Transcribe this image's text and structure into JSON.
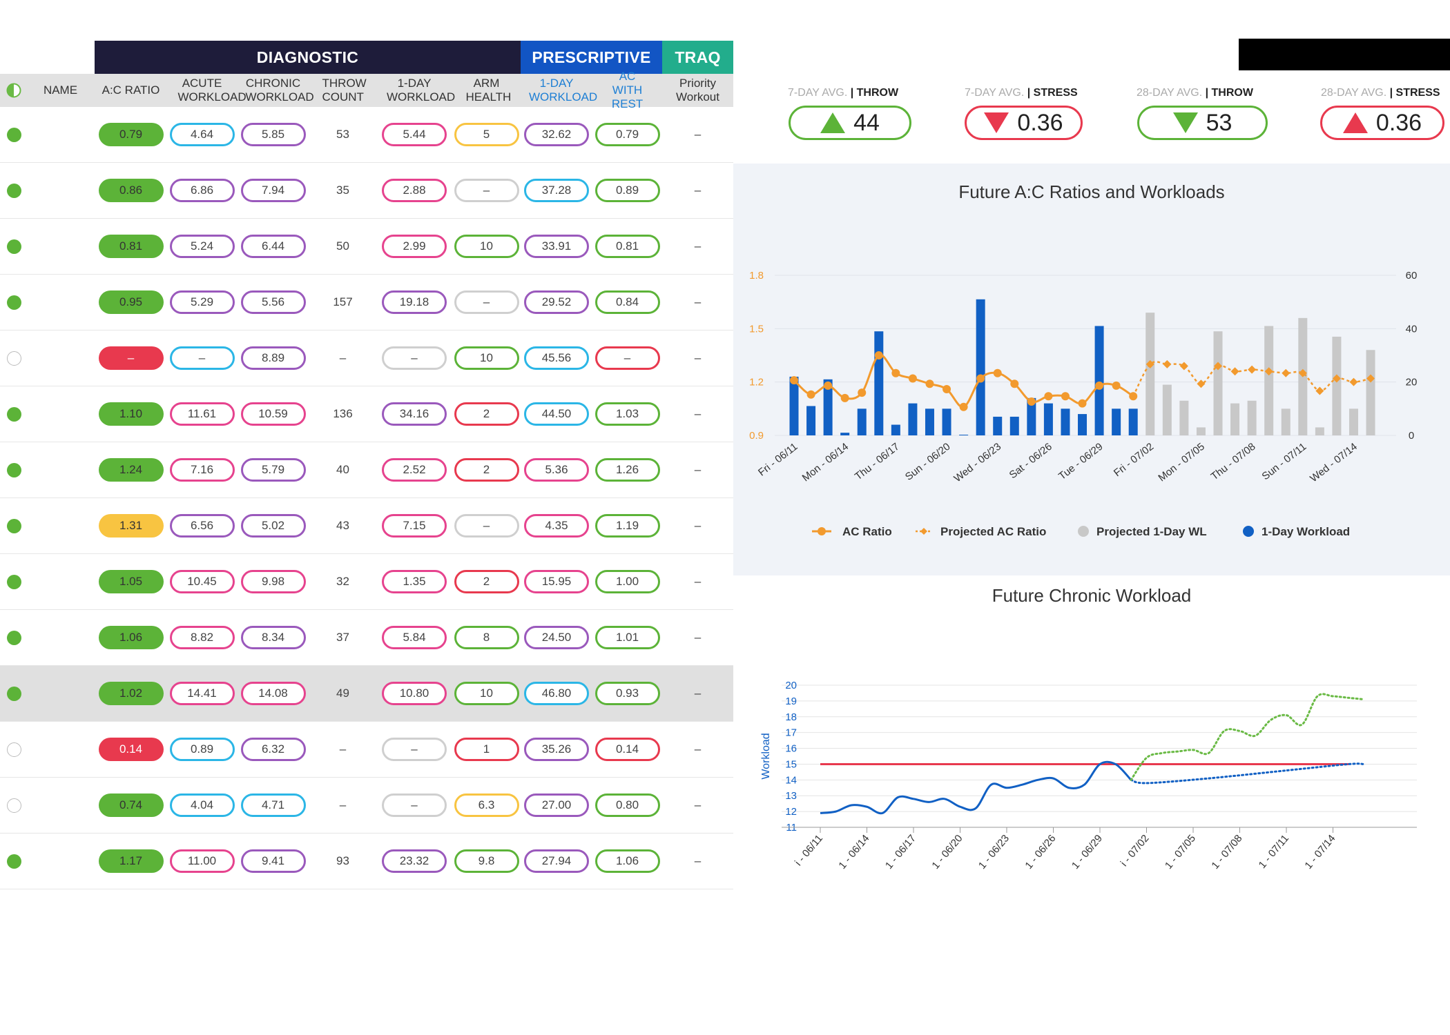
{
  "header": {
    "groups": [
      {
        "label": "DIAGNOSTIC",
        "color": "#1e1c3a"
      },
      {
        "label": "PRESCRIPTIVE",
        "color": "#1255c4"
      },
      {
        "label": "TRAQ",
        "color": "#22ad8c"
      }
    ],
    "columns": [
      {
        "key": "status",
        "label": "",
        "icon": "half-circle-icon"
      },
      {
        "key": "name",
        "label": "NAME"
      },
      {
        "key": "ac",
        "label": "A:C RATIO"
      },
      {
        "key": "acute",
        "label": "ACUTE WORKLOAD"
      },
      {
        "key": "chronic",
        "label": "CHRONIC WORKLOAD"
      },
      {
        "key": "throw",
        "label": "THROW COUNT"
      },
      {
        "key": "day1",
        "label": "1-DAY WORKLOAD"
      },
      {
        "key": "arm",
        "label": "ARM HEALTH"
      },
      {
        "key": "pday1",
        "label": "1-DAY WORKLOAD"
      },
      {
        "key": "acrest",
        "label": "AC WITH REST"
      },
      {
        "key": "priority",
        "label": "Priority Workout"
      }
    ]
  },
  "colors": {
    "green": "#5cb338",
    "red": "#e8394e",
    "yellow": "#f8c441",
    "purple": "#9a59bc",
    "cyan": "#2bb6e6",
    "pink": "#e6438e",
    "gray": "#cfcfcf",
    "orange": "#f29a2e"
  },
  "rows": [
    {
      "active": true,
      "ac": {
        "v": "0.79",
        "c": "green"
      },
      "acute": {
        "v": "4.64",
        "c": "cyan"
      },
      "chronic": {
        "v": "5.85",
        "c": "purple"
      },
      "throw": "53",
      "day1": {
        "v": "5.44",
        "c": "pink"
      },
      "arm": {
        "v": "5",
        "c": "yellow"
      },
      "pday1": {
        "v": "32.62",
        "c": "purple"
      },
      "acrest": {
        "v": "0.79",
        "c": "green"
      },
      "priority": "–"
    },
    {
      "active": true,
      "ac": {
        "v": "0.86",
        "c": "green"
      },
      "acute": {
        "v": "6.86",
        "c": "purple"
      },
      "chronic": {
        "v": "7.94",
        "c": "purple"
      },
      "throw": "35",
      "day1": {
        "v": "2.88",
        "c": "pink"
      },
      "arm": {
        "v": "–",
        "c": "gray"
      },
      "pday1": {
        "v": "37.28",
        "c": "cyan"
      },
      "acrest": {
        "v": "0.89",
        "c": "green"
      },
      "priority": "–"
    },
    {
      "active": true,
      "ac": {
        "v": "0.81",
        "c": "green"
      },
      "acute": {
        "v": "5.24",
        "c": "purple"
      },
      "chronic": {
        "v": "6.44",
        "c": "purple"
      },
      "throw": "50",
      "day1": {
        "v": "2.99",
        "c": "pink"
      },
      "arm": {
        "v": "10",
        "c": "green"
      },
      "pday1": {
        "v": "33.91",
        "c": "purple"
      },
      "acrest": {
        "v": "0.81",
        "c": "green"
      },
      "priority": "–"
    },
    {
      "active": true,
      "ac": {
        "v": "0.95",
        "c": "green"
      },
      "acute": {
        "v": "5.29",
        "c": "purple"
      },
      "chronic": {
        "v": "5.56",
        "c": "purple"
      },
      "throw": "157",
      "day1": {
        "v": "19.18",
        "c": "purple"
      },
      "arm": {
        "v": "–",
        "c": "gray"
      },
      "pday1": {
        "v": "29.52",
        "c": "purple"
      },
      "acrest": {
        "v": "0.84",
        "c": "green"
      },
      "priority": "–"
    },
    {
      "active": false,
      "ac": {
        "v": "–",
        "c": "red"
      },
      "acute": {
        "v": "–",
        "c": "cyan"
      },
      "chronic": {
        "v": "8.89",
        "c": "purple"
      },
      "throw": "–",
      "day1": {
        "v": "–",
        "c": "gray"
      },
      "arm": {
        "v": "10",
        "c": "green"
      },
      "pday1": {
        "v": "45.56",
        "c": "cyan"
      },
      "acrest": {
        "v": "–",
        "c": "red"
      },
      "priority": "–"
    },
    {
      "active": true,
      "ac": {
        "v": "1.10",
        "c": "green"
      },
      "acute": {
        "v": "11.61",
        "c": "pink"
      },
      "chronic": {
        "v": "10.59",
        "c": "pink"
      },
      "throw": "136",
      "day1": {
        "v": "34.16",
        "c": "purple"
      },
      "arm": {
        "v": "2",
        "c": "red"
      },
      "pday1": {
        "v": "44.50",
        "c": "cyan"
      },
      "acrest": {
        "v": "1.03",
        "c": "green"
      },
      "priority": "–"
    },
    {
      "active": true,
      "ac": {
        "v": "1.24",
        "c": "green"
      },
      "acute": {
        "v": "7.16",
        "c": "pink"
      },
      "chronic": {
        "v": "5.79",
        "c": "purple"
      },
      "throw": "40",
      "day1": {
        "v": "2.52",
        "c": "pink"
      },
      "arm": {
        "v": "2",
        "c": "red"
      },
      "pday1": {
        "v": "5.36",
        "c": "pink"
      },
      "acrest": {
        "v": "1.26",
        "c": "green"
      },
      "priority": "–"
    },
    {
      "active": true,
      "ac": {
        "v": "1.31",
        "c": "yellow"
      },
      "acute": {
        "v": "6.56",
        "c": "purple"
      },
      "chronic": {
        "v": "5.02",
        "c": "purple"
      },
      "throw": "43",
      "day1": {
        "v": "7.15",
        "c": "pink"
      },
      "arm": {
        "v": "–",
        "c": "gray"
      },
      "pday1": {
        "v": "4.35",
        "c": "pink"
      },
      "acrest": {
        "v": "1.19",
        "c": "green"
      },
      "priority": "–"
    },
    {
      "active": true,
      "ac": {
        "v": "1.05",
        "c": "green"
      },
      "acute": {
        "v": "10.45",
        "c": "pink"
      },
      "chronic": {
        "v": "9.98",
        "c": "pink"
      },
      "throw": "32",
      "day1": {
        "v": "1.35",
        "c": "pink"
      },
      "arm": {
        "v": "2",
        "c": "red"
      },
      "pday1": {
        "v": "15.95",
        "c": "pink"
      },
      "acrest": {
        "v": "1.00",
        "c": "green"
      },
      "priority": "–"
    },
    {
      "active": true,
      "ac": {
        "v": "1.06",
        "c": "green"
      },
      "acute": {
        "v": "8.82",
        "c": "pink"
      },
      "chronic": {
        "v": "8.34",
        "c": "purple"
      },
      "throw": "37",
      "day1": {
        "v": "5.84",
        "c": "pink"
      },
      "arm": {
        "v": "8",
        "c": "green"
      },
      "pday1": {
        "v": "24.50",
        "c": "purple"
      },
      "acrest": {
        "v": "1.01",
        "c": "green"
      },
      "priority": "–"
    },
    {
      "active": true,
      "highlight": true,
      "ac": {
        "v": "1.02",
        "c": "green"
      },
      "acute": {
        "v": "14.41",
        "c": "pink"
      },
      "chronic": {
        "v": "14.08",
        "c": "pink"
      },
      "throw": "49",
      "day1": {
        "v": "10.80",
        "c": "pink"
      },
      "arm": {
        "v": "10",
        "c": "green"
      },
      "pday1": {
        "v": "46.80",
        "c": "cyan"
      },
      "acrest": {
        "v": "0.93",
        "c": "green"
      },
      "priority": "–"
    },
    {
      "active": false,
      "ac": {
        "v": "0.14",
        "c": "red"
      },
      "acute": {
        "v": "0.89",
        "c": "cyan"
      },
      "chronic": {
        "v": "6.32",
        "c": "purple"
      },
      "throw": "–",
      "day1": {
        "v": "–",
        "c": "gray"
      },
      "arm": {
        "v": "1",
        "c": "red"
      },
      "pday1": {
        "v": "35.26",
        "c": "purple"
      },
      "acrest": {
        "v": "0.14",
        "c": "red"
      },
      "priority": "–"
    },
    {
      "active": false,
      "ac": {
        "v": "0.74",
        "c": "green"
      },
      "acute": {
        "v": "4.04",
        "c": "cyan"
      },
      "chronic": {
        "v": "4.71",
        "c": "cyan"
      },
      "throw": "–",
      "day1": {
        "v": "–",
        "c": "gray"
      },
      "arm": {
        "v": "6.3",
        "c": "yellow"
      },
      "pday1": {
        "v": "27.00",
        "c": "purple"
      },
      "acrest": {
        "v": "0.80",
        "c": "green"
      },
      "priority": "–"
    },
    {
      "active": true,
      "ac": {
        "v": "1.17",
        "c": "green"
      },
      "acute": {
        "v": "11.00",
        "c": "pink"
      },
      "chronic": {
        "v": "9.41",
        "c": "purple"
      },
      "throw": "93",
      "day1": {
        "v": "23.32",
        "c": "purple"
      },
      "arm": {
        "v": "9.8",
        "c": "green"
      },
      "pday1": {
        "v": "27.94",
        "c": "purple"
      },
      "acrest": {
        "v": "1.06",
        "c": "green"
      },
      "priority": "–"
    }
  ],
  "summary": [
    {
      "period": "7-DAY AVG.",
      "sep": " | ",
      "metric": "THROW",
      "value": "44",
      "dir": "up",
      "color": "green"
    },
    {
      "period": "7-DAY AVG.",
      "sep": " | ",
      "metric": "STRESS",
      "value": "0.36",
      "dir": "down",
      "color": "red"
    },
    {
      "period": "28-DAY AVG.",
      "sep": " | ",
      "metric": "THROW",
      "value": "53",
      "dir": "down",
      "color": "green"
    },
    {
      "period": "28-DAY AVG.",
      "sep": " | ",
      "metric": "STRESS",
      "value": "0.36",
      "dir": "up",
      "color": "red"
    }
  ],
  "chart_data": [
    {
      "type": "bar",
      "title": "Future A:C Ratios and Workloads",
      "categories": [
        "06/11",
        "06/12",
        "06/13",
        "06/14",
        "06/15",
        "06/16",
        "06/17",
        "06/18",
        "06/19",
        "06/20",
        "06/21",
        "06/22",
        "06/23",
        "06/24",
        "06/25",
        "06/26",
        "06/27",
        "06/28",
        "06/29",
        "06/30",
        "07/01",
        "07/02",
        "07/03",
        "07/04",
        "07/05",
        "07/06",
        "07/07",
        "07/08",
        "07/09",
        "07/10",
        "07/11",
        "07/12",
        "07/13",
        "07/14",
        "07/15"
      ],
      "xtick_labels": [
        "Fri - 06/11",
        "Mon - 06/14",
        "Thu - 06/17",
        "Sun - 06/20",
        "Wed - 06/23",
        "Sat - 06/26",
        "Tue - 06/29",
        "Fri - 07/02",
        "Mon - 07/05",
        "Thu - 07/08",
        "Sun - 07/11",
        "Wed - 07/14"
      ],
      "y_left": {
        "ticks": [
          "0.9",
          "1.2",
          "1.5",
          "1.8"
        ],
        "range": [
          0.9,
          1.8
        ]
      },
      "y_right": {
        "ticks": [
          "0",
          "20",
          "40",
          "60"
        ],
        "range": [
          0,
          60
        ]
      },
      "series": [
        {
          "name": "AC Ratio",
          "kind": "line",
          "axis": "left",
          "color": "#f29a2e",
          "values": [
            1.21,
            1.13,
            1.18,
            1.11,
            1.14,
            1.35,
            1.25,
            1.22,
            1.19,
            1.16,
            1.06,
            1.22,
            1.25,
            1.19,
            1.09,
            1.12,
            1.12,
            1.08,
            1.18,
            1.18,
            1.12,
            null,
            null,
            null,
            null,
            null,
            null,
            null,
            null,
            null,
            null,
            null,
            null,
            null,
            null
          ]
        },
        {
          "name": "Projected AC Ratio",
          "kind": "line",
          "axis": "left",
          "color": "#f29a2e",
          "values": [
            null,
            null,
            null,
            null,
            null,
            null,
            null,
            null,
            null,
            null,
            null,
            null,
            null,
            null,
            null,
            null,
            null,
            null,
            null,
            null,
            1.12,
            1.3,
            1.3,
            1.29,
            1.19,
            1.29,
            1.26,
            1.27,
            1.26,
            1.25,
            1.25,
            1.15,
            1.22,
            1.2,
            1.22
          ]
        },
        {
          "name": "Projected 1-Day WL",
          "kind": "bar",
          "axis": "right",
          "color": "#c8c8c8",
          "values": [
            null,
            null,
            null,
            null,
            null,
            null,
            null,
            null,
            null,
            null,
            null,
            null,
            null,
            null,
            null,
            null,
            null,
            null,
            null,
            null,
            null,
            46,
            19,
            13,
            3,
            39,
            12,
            13,
            41,
            10,
            44,
            3,
            37,
            10,
            32
          ]
        },
        {
          "name": "1-Day Workload",
          "kind": "bar",
          "axis": "right",
          "color": "#1160c4",
          "values": [
            22,
            11,
            21,
            1,
            10,
            39,
            4,
            12,
            10,
            10,
            0,
            51,
            7,
            7,
            14,
            12,
            10,
            8,
            41,
            10,
            10,
            null,
            null,
            null,
            null,
            null,
            null,
            null,
            null,
            null,
            null,
            null,
            null,
            null,
            null
          ]
        }
      ]
    },
    {
      "type": "line",
      "title": "Future Chronic Workload",
      "ylabel": "Workload",
      "y_ticks": [
        "11",
        "12",
        "13",
        "14",
        "15",
        "16",
        "17",
        "18",
        "19",
        "20"
      ],
      "ylim": [
        11,
        20
      ],
      "xtick_labels": [
        "i - 06/11",
        "1 - 06/14",
        "1 - 06/17",
        "1 - 06/20",
        "1 - 06/23",
        "1 - 06/26",
        "1 - 06/29",
        "i - 07/02",
        "1 - 07/05",
        "1 - 07/08",
        "1 - 07/11",
        "1 - 07/14"
      ],
      "series": [
        {
          "name": "threshold",
          "color": "#e8394e",
          "style": "solid",
          "points": [
            [
              0,
              15
            ],
            [
              34,
              15
            ]
          ]
        },
        {
          "name": "chronic",
          "color": "#1160c4",
          "style": "solid",
          "points": [
            [
              0,
              11.9
            ],
            [
              1,
              12.0
            ],
            [
              2,
              12.4
            ],
            [
              3,
              12.3
            ],
            [
              4,
              11.9
            ],
            [
              5,
              12.9
            ],
            [
              6,
              12.8
            ],
            [
              7,
              12.6
            ],
            [
              8,
              12.8
            ],
            [
              9,
              12.3
            ],
            [
              10,
              12.2
            ],
            [
              11,
              13.7
            ],
            [
              12,
              13.5
            ],
            [
              13,
              13.7
            ],
            [
              14,
              14.0
            ],
            [
              15,
              14.1
            ],
            [
              16,
              13.5
            ],
            [
              17,
              13.7
            ],
            [
              18,
              15.0
            ],
            [
              19,
              15.0
            ],
            [
              20,
              14.0
            ]
          ]
        },
        {
          "name": "projected-rest",
          "color": "#1160c4",
          "style": "dotted",
          "points": [
            [
              20,
              14.0
            ],
            [
              21,
              13.8
            ],
            [
              25,
              14.1
            ],
            [
              30,
              14.6
            ],
            [
              34,
              15.0
            ],
            [
              35,
              15.0
            ]
          ]
        },
        {
          "name": "projected-load",
          "color": "#6aba45",
          "style": "dotted",
          "points": [
            [
              20,
              14.0
            ],
            [
              21,
              15.4
            ],
            [
              22,
              15.7
            ],
            [
              23,
              15.8
            ],
            [
              24,
              15.9
            ],
            [
              25,
              15.7
            ],
            [
              26,
              17.1
            ],
            [
              27,
              17.1
            ],
            [
              28,
              16.8
            ],
            [
              29,
              17.8
            ],
            [
              30,
              18.1
            ],
            [
              31,
              17.5
            ],
            [
              32,
              19.3
            ],
            [
              33,
              19.3
            ],
            [
              34,
              19.2
            ],
            [
              35,
              19.1
            ]
          ]
        }
      ]
    }
  ]
}
